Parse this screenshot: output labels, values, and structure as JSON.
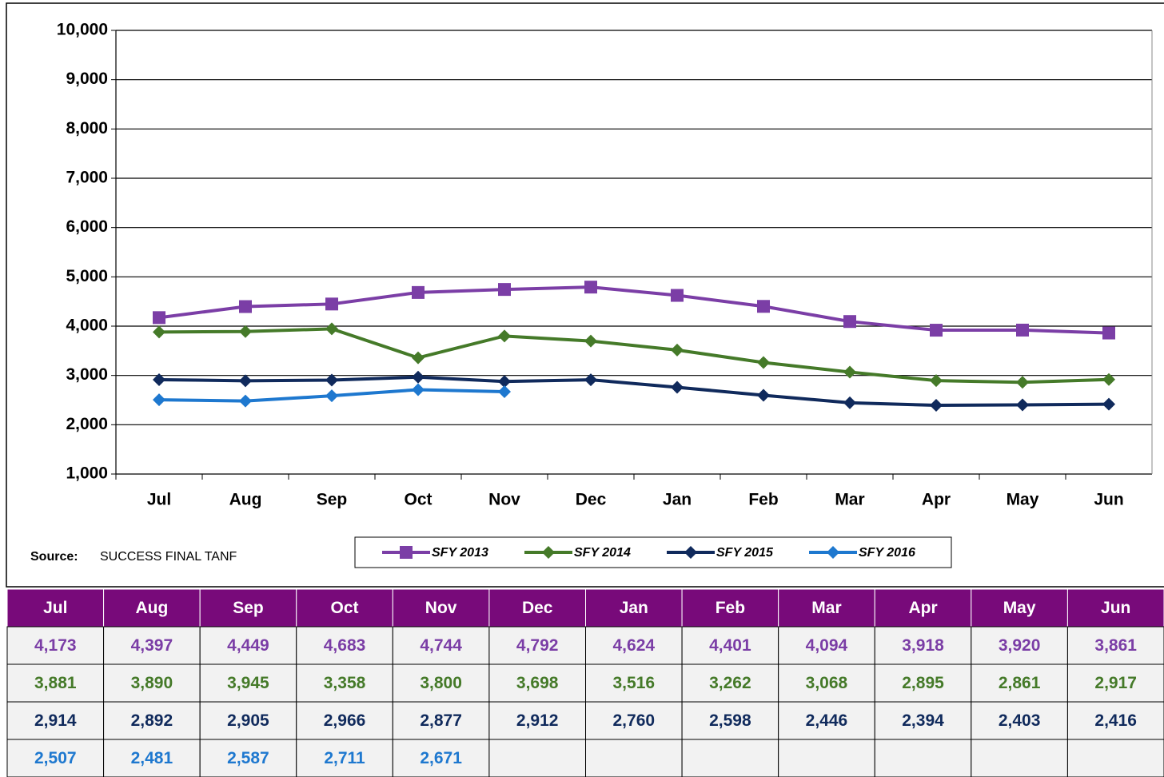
{
  "chart_data": {
    "type": "line",
    "categories": [
      "Jul",
      "Aug",
      "Sep",
      "Oct",
      "Nov",
      "Dec",
      "Jan",
      "Feb",
      "Mar",
      "Apr",
      "May",
      "Jun"
    ],
    "ylim": [
      1000,
      10000
    ],
    "yticks": [
      {
        "value": 1000,
        "label": "1,000"
      },
      {
        "value": 2000,
        "label": "2,000"
      },
      {
        "value": 3000,
        "label": "3,000"
      },
      {
        "value": 4000,
        "label": "4,000"
      },
      {
        "value": 5000,
        "label": "5,000"
      },
      {
        "value": 6000,
        "label": "6,000"
      },
      {
        "value": 7000,
        "label": "7,000"
      },
      {
        "value": 8000,
        "label": "8,000"
      },
      {
        "value": 9000,
        "label": "9,000"
      },
      {
        "value": 10000,
        "label": "10,000"
      }
    ],
    "grid": true,
    "source_label": "Source:",
    "source": "SUCCESS FINAL TANF",
    "header_color": "#780a7a",
    "series": [
      {
        "name": "SFY 2013",
        "color": "#7b3ea6",
        "marker": "square",
        "values": [
          4173,
          4397,
          4449,
          4683,
          4744,
          4792,
          4624,
          4401,
          4094,
          3918,
          3920,
          3861
        ],
        "value_labels": [
          "4,173",
          "4,397",
          "4,449",
          "4,683",
          "4,744",
          "4,792",
          "4,624",
          "4,401",
          "4,094",
          "3,918",
          "3,920",
          "3,861"
        ]
      },
      {
        "name": "SFY 2014",
        "color": "#457a29",
        "marker": "diamond",
        "values": [
          3881,
          3890,
          3945,
          3358,
          3800,
          3698,
          3516,
          3262,
          3068,
          2895,
          2861,
          2917
        ],
        "value_labels": [
          "3,881",
          "3,890",
          "3,945",
          "3,358",
          "3,800",
          "3,698",
          "3,516",
          "3,262",
          "3,068",
          "2,895",
          "2,861",
          "2,917"
        ]
      },
      {
        "name": "SFY 2015",
        "color": "#102a5c",
        "marker": "diamond",
        "values": [
          2914,
          2892,
          2905,
          2966,
          2877,
          2912,
          2760,
          2598,
          2446,
          2394,
          2403,
          2416
        ],
        "value_labels": [
          "2,914",
          "2,892",
          "2,905",
          "2,966",
          "2,877",
          "2,912",
          "2,760",
          "2,598",
          "2,446",
          "2,394",
          "2,403",
          "2,416"
        ]
      },
      {
        "name": "SFY 2016",
        "color": "#1e78cf",
        "marker": "diamond",
        "values": [
          2507,
          2481,
          2587,
          2711,
          2671,
          null,
          null,
          null,
          null,
          null,
          null,
          null
        ],
        "value_labels": [
          "2,507",
          "2,481",
          "2,587",
          "2,711",
          "2,671",
          null,
          null,
          null,
          null,
          null,
          null,
          null
        ]
      }
    ]
  }
}
